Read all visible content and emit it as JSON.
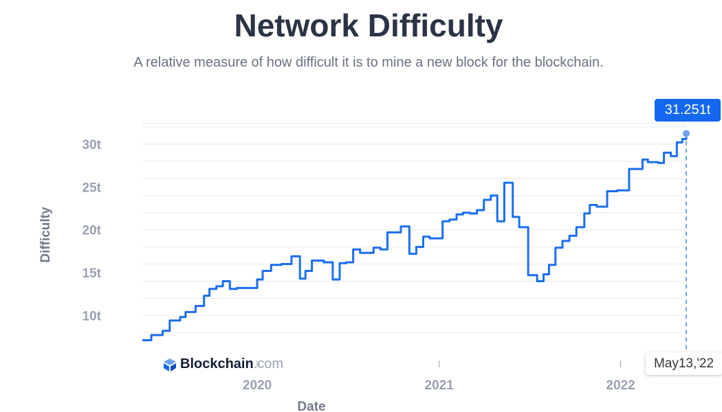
{
  "header": {
    "title": "Network Difficulty",
    "subtitle": "A relative measure of how difficult it is to mine a new block for the blockchain."
  },
  "logo": {
    "brand": "Blockchain",
    "suffix": ".com",
    "icon": "blockchain-cube-icon"
  },
  "tooltip": {
    "value_label": "31.251t",
    "date_label": "May13,'22"
  },
  "colors": {
    "line": "#1a6ef0",
    "badge": "#1467ef",
    "grid": "#e6e8ee"
  },
  "chart_data": {
    "type": "line",
    "title": "Network Difficulty",
    "xlabel": "Date",
    "ylabel": "Difficulty",
    "x_ticks": [
      "2020",
      "2021",
      "2022"
    ],
    "y_ticks": [
      "10t",
      "15t",
      "20t",
      "25t",
      "30t"
    ],
    "y_tick_values": [
      10,
      15,
      20,
      25,
      30
    ],
    "ylim": [
      6.5,
      32.4
    ],
    "xlim": [
      "2019-05-15",
      "2022-05-13"
    ],
    "grid": true,
    "unit": "t",
    "step": true,
    "series": [
      {
        "points": [
          [
            "2019-05-15",
            7.1
          ],
          [
            "2019-06-02",
            7.7
          ],
          [
            "2019-06-25",
            8.2
          ],
          [
            "2019-07-09",
            9.4
          ],
          [
            "2019-07-30",
            9.8
          ],
          [
            "2019-08-10",
            10.4
          ],
          [
            "2019-08-30",
            11.1
          ],
          [
            "2019-09-16",
            12.3
          ],
          [
            "2019-09-27",
            13.1
          ],
          [
            "2019-10-11",
            13.4
          ],
          [
            "2019-10-24",
            14.0
          ],
          [
            "2019-11-07",
            13.1
          ],
          [
            "2019-11-21",
            13.2
          ],
          [
            "2019-12-12",
            13.2
          ],
          [
            "2020-01-01",
            14.2
          ],
          [
            "2020-01-12",
            15.2
          ],
          [
            "2020-01-29",
            15.9
          ],
          [
            "2020-02-19",
            16.0
          ],
          [
            "2020-03-10",
            16.9
          ],
          [
            "2020-03-27",
            14.3
          ],
          [
            "2020-04-07",
            15.2
          ],
          [
            "2020-04-20",
            16.4
          ],
          [
            "2020-05-14",
            16.2
          ],
          [
            "2020-06-01",
            14.2
          ],
          [
            "2020-06-15",
            16.1
          ],
          [
            "2020-06-28",
            16.2
          ],
          [
            "2020-07-12",
            17.7
          ],
          [
            "2020-07-26",
            17.3
          ],
          [
            "2020-08-22",
            17.9
          ],
          [
            "2020-09-05",
            17.7
          ],
          [
            "2020-09-19",
            19.7
          ],
          [
            "2020-10-16",
            20.4
          ],
          [
            "2020-11-02",
            17.2
          ],
          [
            "2020-11-16",
            18.0
          ],
          [
            "2020-11-30",
            19.2
          ],
          [
            "2020-12-13",
            19.0
          ],
          [
            "2021-01-08",
            21.0
          ],
          [
            "2021-01-22",
            21.2
          ],
          [
            "2021-02-05",
            21.8
          ],
          [
            "2021-02-18",
            22.0
          ],
          [
            "2021-03-04",
            21.9
          ],
          [
            "2021-03-18",
            22.3
          ],
          [
            "2021-04-01",
            23.5
          ],
          [
            "2021-04-15",
            24.0
          ],
          [
            "2021-04-28",
            21.0
          ],
          [
            "2021-05-12",
            25.5
          ],
          [
            "2021-05-29",
            21.5
          ],
          [
            "2021-06-11",
            20.3
          ],
          [
            "2021-06-29",
            14.7
          ],
          [
            "2021-07-17",
            14.0
          ],
          [
            "2021-07-30",
            14.8
          ],
          [
            "2021-08-10",
            15.9
          ],
          [
            "2021-08-23",
            17.9
          ],
          [
            "2021-09-06",
            18.7
          ],
          [
            "2021-09-20",
            19.3
          ],
          [
            "2021-10-04",
            20.3
          ],
          [
            "2021-10-20",
            21.9
          ],
          [
            "2021-10-31",
            22.9
          ],
          [
            "2021-11-14",
            22.7
          ],
          [
            "2021-12-05",
            24.5
          ],
          [
            "2021-12-25",
            24.6
          ],
          [
            "2022-01-18",
            27.1
          ],
          [
            "2022-02-14",
            28.2
          ],
          [
            "2022-02-25",
            27.9
          ],
          [
            "2022-03-18",
            27.8
          ],
          [
            "2022-03-29",
            29.0
          ],
          [
            "2022-04-12",
            28.6
          ],
          [
            "2022-04-24",
            30.2
          ],
          [
            "2022-05-05",
            30.6
          ],
          [
            "2022-05-13",
            31.251
          ]
        ]
      }
    ]
  }
}
